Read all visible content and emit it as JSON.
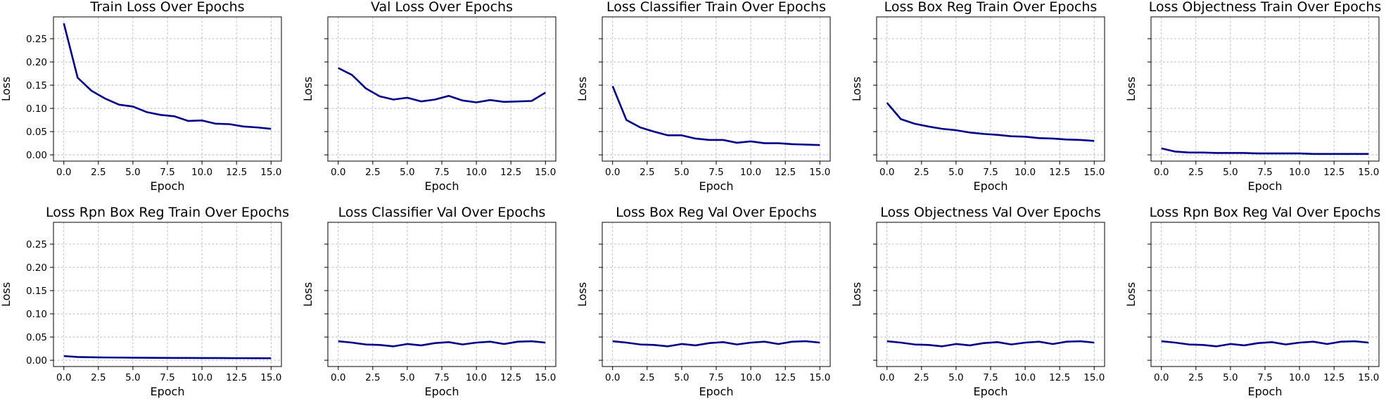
{
  "chart_data": [
    {
      "type": "line",
      "title": "Train Loss Over Epochs",
      "xlabel": "Epoch",
      "ylabel": "Loss",
      "x": [
        0,
        1,
        2,
        3,
        4,
        5,
        6,
        7,
        8,
        9,
        10,
        11,
        12,
        13,
        14,
        15
      ],
      "series": [
        {
          "values": [
            0.283,
            0.166,
            0.138,
            0.121,
            0.108,
            0.104,
            0.092,
            0.086,
            0.083,
            0.073,
            0.074,
            0.067,
            0.066,
            0.061,
            0.059,
            0.056
          ]
        }
      ],
      "xlim": [
        -0.75,
        15.75
      ],
      "ylim": [
        -0.0135,
        0.297
      ],
      "xticks": [
        "0.0",
        "2.5",
        "5.0",
        "7.5",
        "10.0",
        "12.5",
        "15.0"
      ],
      "yticks": [
        "0.00",
        "0.05",
        "0.10",
        "0.15",
        "0.20",
        "0.25"
      ],
      "grid": true
    },
    {
      "type": "line",
      "title": "Val Loss Over Epochs",
      "xlabel": "Epoch",
      "ylabel": "Loss",
      "x": [
        0,
        1,
        2,
        3,
        4,
        5,
        6,
        7,
        8,
        9,
        10,
        11,
        12,
        13,
        14,
        15
      ],
      "series": [
        {
          "values": [
            0.187,
            0.172,
            0.143,
            0.126,
            0.119,
            0.123,
            0.115,
            0.119,
            0.127,
            0.117,
            0.113,
            0.118,
            0.114,
            0.115,
            0.116,
            0.134
          ]
        }
      ],
      "xlim": [
        -0.75,
        15.75
      ],
      "ylim": [
        -0.0135,
        0.297
      ],
      "xticks": [
        "0.0",
        "2.5",
        "5.0",
        "7.5",
        "10.0",
        "12.5",
        "15.0"
      ],
      "yticks": [],
      "grid": true
    },
    {
      "type": "line",
      "title": "Loss Classifier Train Over Epochs",
      "xlabel": "Epoch",
      "ylabel": "Loss",
      "x": [
        0,
        1,
        2,
        3,
        4,
        5,
        6,
        7,
        8,
        9,
        10,
        11,
        12,
        13,
        14,
        15
      ],
      "series": [
        {
          "values": [
            0.148,
            0.075,
            0.059,
            0.05,
            0.042,
            0.042,
            0.035,
            0.032,
            0.032,
            0.026,
            0.029,
            0.025,
            0.025,
            0.023,
            0.022,
            0.021
          ]
        }
      ],
      "xlim": [
        -0.75,
        15.75
      ],
      "ylim": [
        -0.0135,
        0.297
      ],
      "xticks": [
        "0.0",
        "2.5",
        "5.0",
        "7.5",
        "10.0",
        "12.5",
        "15.0"
      ],
      "yticks": [],
      "grid": true
    },
    {
      "type": "line",
      "title": "Loss Box Reg Train Over Epochs",
      "xlabel": "Epoch",
      "ylabel": "Loss",
      "x": [
        0,
        1,
        2,
        3,
        4,
        5,
        6,
        7,
        8,
        9,
        10,
        11,
        12,
        13,
        14,
        15
      ],
      "series": [
        {
          "values": [
            0.112,
            0.077,
            0.067,
            0.061,
            0.056,
            0.053,
            0.048,
            0.045,
            0.043,
            0.04,
            0.039,
            0.036,
            0.035,
            0.033,
            0.032,
            0.03
          ]
        }
      ],
      "xlim": [
        -0.75,
        15.75
      ],
      "ylim": [
        -0.0135,
        0.297
      ],
      "xticks": [
        "0.0",
        "2.5",
        "5.0",
        "7.5",
        "10.0",
        "12.5",
        "15.0"
      ],
      "yticks": [],
      "grid": true
    },
    {
      "type": "line",
      "title": "Loss Objectness Train Over Epochs",
      "xlabel": "Epoch",
      "ylabel": "Loss",
      "x": [
        0,
        1,
        2,
        3,
        4,
        5,
        6,
        7,
        8,
        9,
        10,
        11,
        12,
        13,
        14,
        15
      ],
      "series": [
        {
          "values": [
            0.014,
            0.007,
            0.005,
            0.005,
            0.004,
            0.004,
            0.004,
            0.003,
            0.003,
            0.003,
            0.003,
            0.002,
            0.002,
            0.002,
            0.002,
            0.002
          ]
        }
      ],
      "xlim": [
        -0.75,
        15.75
      ],
      "ylim": [
        -0.0135,
        0.297
      ],
      "xticks": [
        "0.0",
        "2.5",
        "5.0",
        "7.5",
        "10.0",
        "12.5",
        "15.0"
      ],
      "yticks": [],
      "grid": true
    },
    {
      "type": "line",
      "title": "Loss Rpn Box Reg Train Over Epochs",
      "xlabel": "Epoch",
      "ylabel": "Loss",
      "x": [
        0,
        1,
        2,
        3,
        4,
        5,
        6,
        7,
        8,
        9,
        10,
        11,
        12,
        13,
        14,
        15
      ],
      "series": [
        {
          "values": [
            0.009,
            0.007,
            0.0065,
            0.006,
            0.0058,
            0.0055,
            0.0053,
            0.0052,
            0.005,
            0.0049,
            0.0048,
            0.0047,
            0.0046,
            0.0045,
            0.0044,
            0.0043
          ]
        }
      ],
      "xlim": [
        -0.75,
        15.75
      ],
      "ylim": [
        -0.0135,
        0.297
      ],
      "xticks": [
        "0.0",
        "2.5",
        "5.0",
        "7.5",
        "10.0",
        "12.5",
        "15.0"
      ],
      "yticks": [
        "0.00",
        "0.05",
        "0.10",
        "0.15",
        "0.20",
        "0.25"
      ],
      "grid": true
    },
    {
      "type": "line",
      "title": "Loss Classifier Val Over Epochs",
      "xlabel": "Epoch",
      "ylabel": "Loss",
      "x": [
        0,
        1,
        2,
        3,
        4,
        5,
        6,
        7,
        8,
        9,
        10,
        11,
        12,
        13,
        14,
        15
      ],
      "series": [
        {
          "values": [
            0.041,
            0.038,
            0.034,
            0.033,
            0.03,
            0.035,
            0.032,
            0.037,
            0.039,
            0.034,
            0.038,
            0.04,
            0.035,
            0.04,
            0.041,
            0.038
          ]
        }
      ],
      "xlim": [
        -0.75,
        15.75
      ],
      "ylim": [
        -0.0135,
        0.297
      ],
      "xticks": [
        "0.0",
        "2.5",
        "5.0",
        "7.5",
        "10.0",
        "12.5",
        "15.0"
      ],
      "yticks": [],
      "grid": true
    },
    {
      "type": "line",
      "title": "Loss Box Reg Val Over Epochs",
      "xlabel": "Epoch",
      "ylabel": "Loss",
      "x": [
        0,
        1,
        2,
        3,
        4,
        5,
        6,
        7,
        8,
        9,
        10,
        11,
        12,
        13,
        14,
        15
      ],
      "series": [
        {
          "values": [
            0.041,
            0.038,
            0.034,
            0.033,
            0.03,
            0.035,
            0.032,
            0.037,
            0.039,
            0.034,
            0.038,
            0.04,
            0.035,
            0.04,
            0.041,
            0.038
          ]
        }
      ],
      "xlim": [
        -0.75,
        15.75
      ],
      "ylim": [
        -0.0135,
        0.297
      ],
      "xticks": [
        "0.0",
        "2.5",
        "5.0",
        "7.5",
        "10.0",
        "12.5",
        "15.0"
      ],
      "yticks": [],
      "grid": true
    },
    {
      "type": "line",
      "title": "Loss Objectness Val Over Epochs",
      "xlabel": "Epoch",
      "ylabel": "Loss",
      "x": [
        0,
        1,
        2,
        3,
        4,
        5,
        6,
        7,
        8,
        9,
        10,
        11,
        12,
        13,
        14,
        15
      ],
      "series": [
        {
          "values": [
            0.041,
            0.038,
            0.034,
            0.033,
            0.03,
            0.035,
            0.032,
            0.037,
            0.039,
            0.034,
            0.038,
            0.04,
            0.035,
            0.04,
            0.041,
            0.038
          ]
        }
      ],
      "xlim": [
        -0.75,
        15.75
      ],
      "ylim": [
        -0.0135,
        0.297
      ],
      "xticks": [
        "0.0",
        "2.5",
        "5.0",
        "7.5",
        "10.0",
        "12.5",
        "15.0"
      ],
      "yticks": [],
      "grid": true
    },
    {
      "type": "line",
      "title": "Loss Rpn Box Reg Val Over Epochs",
      "xlabel": "Epoch",
      "ylabel": "Loss",
      "x": [
        0,
        1,
        2,
        3,
        4,
        5,
        6,
        7,
        8,
        9,
        10,
        11,
        12,
        13,
        14,
        15
      ],
      "series": [
        {
          "values": [
            0.041,
            0.038,
            0.034,
            0.033,
            0.03,
            0.035,
            0.032,
            0.037,
            0.039,
            0.034,
            0.038,
            0.04,
            0.035,
            0.04,
            0.041,
            0.038
          ]
        }
      ],
      "xlim": [
        -0.75,
        15.75
      ],
      "ylim": [
        -0.0135,
        0.297
      ],
      "xticks": [
        "0.0",
        "2.5",
        "5.0",
        "7.5",
        "10.0",
        "12.5",
        "15.0"
      ],
      "yticks": [],
      "grid": true
    }
  ],
  "colors": {
    "line": "#00008b",
    "grid": "#b0b0b0",
    "axis": "#000000"
  },
  "layout_grid": {
    "rows": 2,
    "cols": 5,
    "sharey": true
  }
}
